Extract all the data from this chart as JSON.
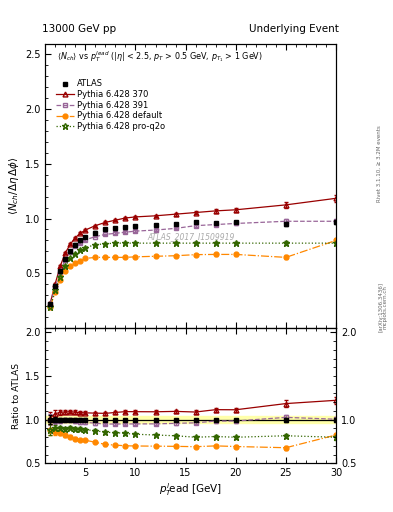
{
  "title_left": "13000 GeV pp",
  "title_right": "Underlying Event",
  "annotation": "ATLAS_2017_I1509919",
  "right_label1": "Rivet 3.1.10, ≥ 3.2M events",
  "right_label2": "mcplots.cern.ch [arXiv:1306.3436]",
  "ylim_main": [
    0.0,
    2.6
  ],
  "ylim_ratio": [
    0.5,
    2.05
  ],
  "xlim": [
    1,
    30
  ],
  "yticks_main": [
    0.5,
    1.0,
    1.5,
    2.0,
    2.5
  ],
  "yticks_ratio": [
    0.5,
    1.0,
    1.5,
    2.0
  ],
  "atlas_x": [
    1.5,
    2.0,
    2.5,
    3.0,
    3.5,
    4.0,
    4.5,
    5.0,
    6.0,
    7.0,
    8.0,
    9.0,
    10.0,
    12.0,
    14.0,
    16.0,
    18.0,
    20.0,
    25.0,
    30.0
  ],
  "atlas_y": [
    0.22,
    0.38,
    0.52,
    0.63,
    0.7,
    0.76,
    0.8,
    0.83,
    0.87,
    0.9,
    0.91,
    0.92,
    0.93,
    0.94,
    0.95,
    0.97,
    0.96,
    0.97,
    0.95,
    0.97
  ],
  "atlas_yerr": [
    0.012,
    0.012,
    0.012,
    0.012,
    0.012,
    0.012,
    0.012,
    0.012,
    0.012,
    0.012,
    0.012,
    0.012,
    0.012,
    0.012,
    0.012,
    0.012,
    0.012,
    0.012,
    0.02,
    0.02
  ],
  "py370_x": [
    1.5,
    2.0,
    2.5,
    3.0,
    3.5,
    4.0,
    4.5,
    5.0,
    6.0,
    7.0,
    8.0,
    9.0,
    10.0,
    12.0,
    14.0,
    16.0,
    18.0,
    20.0,
    25.0,
    30.0
  ],
  "py370_y": [
    0.225,
    0.405,
    0.565,
    0.685,
    0.765,
    0.825,
    0.865,
    0.895,
    0.935,
    0.965,
    0.985,
    1.005,
    1.015,
    1.025,
    1.04,
    1.055,
    1.07,
    1.08,
    1.125,
    1.185
  ],
  "py370_yerr": [
    0.008,
    0.008,
    0.008,
    0.008,
    0.008,
    0.008,
    0.008,
    0.008,
    0.008,
    0.008,
    0.008,
    0.008,
    0.01,
    0.01,
    0.015,
    0.015,
    0.018,
    0.018,
    0.025,
    0.03
  ],
  "py391_x": [
    1.5,
    2.0,
    2.5,
    3.0,
    3.5,
    4.0,
    4.5,
    5.0,
    6.0,
    7.0,
    8.0,
    9.0,
    10.0,
    12.0,
    14.0,
    16.0,
    18.0,
    20.0,
    25.0,
    30.0
  ],
  "py391_y": [
    0.22,
    0.375,
    0.515,
    0.625,
    0.695,
    0.745,
    0.775,
    0.805,
    0.835,
    0.855,
    0.865,
    0.875,
    0.885,
    0.895,
    0.91,
    0.935,
    0.945,
    0.955,
    0.975,
    0.975
  ],
  "py391_yerr": [
    0.008,
    0.008,
    0.008,
    0.008,
    0.008,
    0.008,
    0.008,
    0.008,
    0.008,
    0.008,
    0.008,
    0.008,
    0.008,
    0.008,
    0.01,
    0.01,
    0.012,
    0.012,
    0.018,
    0.02
  ],
  "pydef_x": [
    1.5,
    2.0,
    2.5,
    3.0,
    3.5,
    4.0,
    4.5,
    5.0,
    6.0,
    7.0,
    8.0,
    9.0,
    10.0,
    12.0,
    14.0,
    16.0,
    18.0,
    20.0,
    25.0,
    30.0
  ],
  "pydef_y": [
    0.195,
    0.325,
    0.44,
    0.52,
    0.565,
    0.595,
    0.615,
    0.635,
    0.645,
    0.645,
    0.645,
    0.645,
    0.65,
    0.655,
    0.66,
    0.67,
    0.672,
    0.672,
    0.645,
    0.8
  ],
  "pydef_yerr": [
    0.008,
    0.008,
    0.008,
    0.008,
    0.008,
    0.008,
    0.008,
    0.008,
    0.008,
    0.008,
    0.008,
    0.008,
    0.008,
    0.008,
    0.01,
    0.01,
    0.012,
    0.012,
    0.018,
    0.02
  ],
  "pyq2o_x": [
    1.5,
    2.0,
    2.5,
    3.0,
    3.5,
    4.0,
    4.5,
    5.0,
    6.0,
    7.0,
    8.0,
    9.0,
    10.0,
    12.0,
    14.0,
    16.0,
    18.0,
    20.0,
    25.0,
    30.0
  ],
  "pyq2o_y": [
    0.195,
    0.345,
    0.47,
    0.565,
    0.635,
    0.68,
    0.715,
    0.735,
    0.76,
    0.77,
    0.775,
    0.775,
    0.775,
    0.775,
    0.775,
    0.775,
    0.775,
    0.775,
    0.775,
    0.775
  ],
  "pyq2o_yerr": [
    0.008,
    0.008,
    0.008,
    0.008,
    0.008,
    0.008,
    0.008,
    0.008,
    0.008,
    0.008,
    0.008,
    0.008,
    0.008,
    0.008,
    0.01,
    0.01,
    0.012,
    0.012,
    0.018,
    0.02
  ],
  "color_atlas": "#000000",
  "color_py370": "#990000",
  "color_py391": "#996699",
  "color_pydef": "#ff8800",
  "color_pyq2o": "#336600",
  "band_color": "#ffffaa",
  "band_edge": "#aadd00",
  "band_lo": 0.96,
  "band_hi": 1.04
}
